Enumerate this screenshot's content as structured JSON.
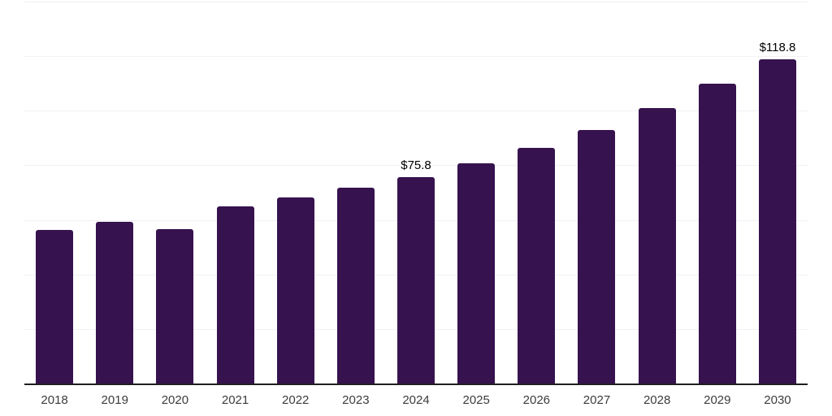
{
  "chart_data": {
    "type": "bar",
    "title": "",
    "xlabel": "",
    "ylabel": "",
    "categories": [
      "2018",
      "2019",
      "2020",
      "2021",
      "2022",
      "2023",
      "2024",
      "2025",
      "2026",
      "2027",
      "2028",
      "2029",
      "2030"
    ],
    "values": [
      56.3,
      59.2,
      56.6,
      64.9,
      68.1,
      71.7,
      75.8,
      80.6,
      86.3,
      93.0,
      101.0,
      109.9,
      118.8
    ],
    "data_labels": {
      "2024": "$75.8",
      "2030": "$118.8"
    },
    "ylim": [
      0,
      140
    ],
    "gridline_step": 20,
    "grid": true,
    "legend": false,
    "colors": {
      "bar": "#36124e",
      "axis_line": "#1f1f1f",
      "gridline": "#f1f1f4",
      "tick_label": "#3c3c3c",
      "data_label": "#000000"
    }
  }
}
